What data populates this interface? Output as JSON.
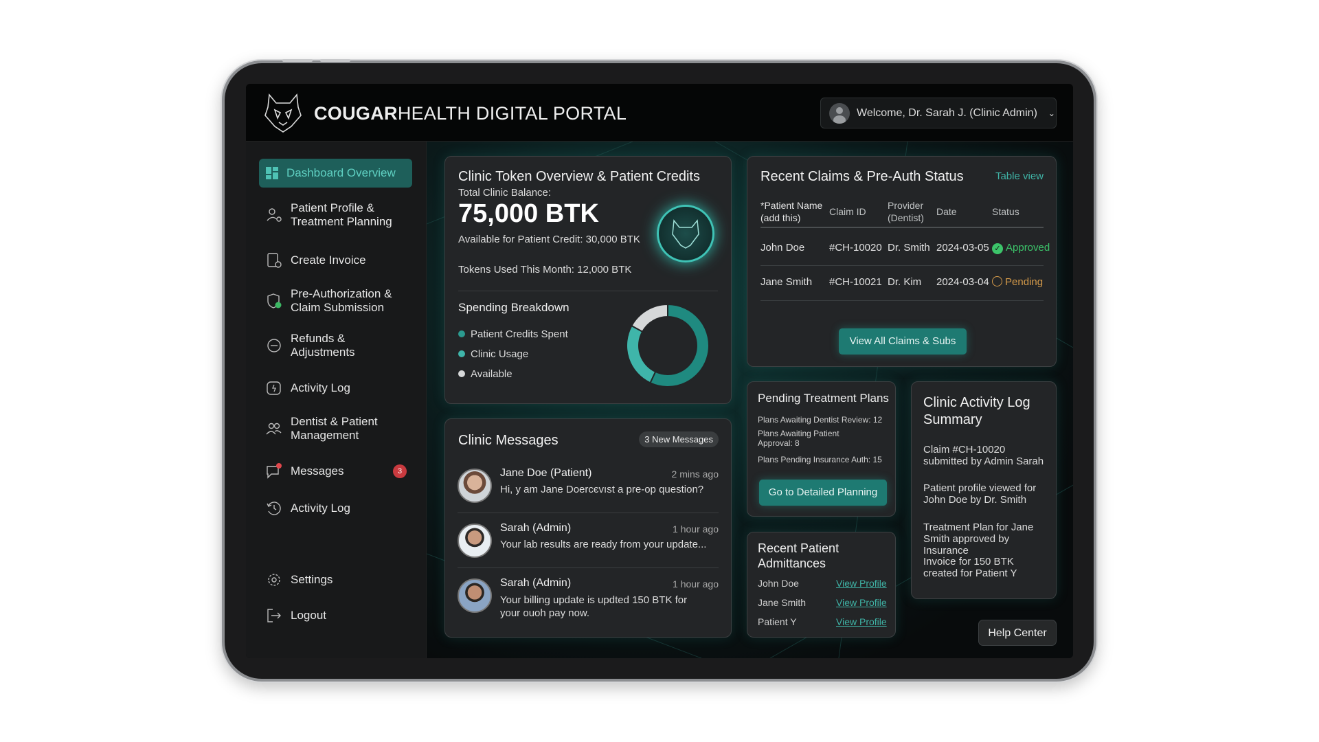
{
  "header": {
    "brand_bold": "COUGAR",
    "brand_rest": "HEALTH DIGITAL PORTAL",
    "welcome": "Welcome, Dr. Sarah J. (Clinic Admin)"
  },
  "sidebar": {
    "items": [
      {
        "label": "Dashboard Overview",
        "icon": "dashboard-icon",
        "active": true
      },
      {
        "label": "Patient Profile & Treatment Planning",
        "icon": "user-gear-icon"
      },
      {
        "label": "Create Invoice",
        "icon": "invoice-icon"
      },
      {
        "label": "Pre-Authorization & Claim Submission",
        "icon": "shield-check-icon"
      },
      {
        "label": "Refunds & Adjustments",
        "icon": "refund-icon"
      },
      {
        "label": "Activity Log",
        "icon": "activity-icon"
      },
      {
        "label": "Dentist & Patient Management",
        "icon": "users-icon"
      },
      {
        "label": "Messages",
        "icon": "message-icon",
        "badge": "3"
      },
      {
        "label": "Activity Log",
        "icon": "history-icon"
      },
      {
        "label": "Settings",
        "icon": "gear-icon"
      },
      {
        "label": "Logout",
        "icon": "logout-icon"
      }
    ]
  },
  "token": {
    "title": "Clinic Token Overview & Patient Credits",
    "balance_label": "Total Clinic Balance:",
    "balance": "75,000 BTK",
    "available": "Available for Patient Credit: 30,000 BTK",
    "used": "Tokens Used This Month: 12,000 BTK",
    "breakdown_title": "Spending Breakdown"
  },
  "chart_data": {
    "type": "pie",
    "title": "Spending Breakdown",
    "series": [
      {
        "name": "Patient Credits Spent",
        "value": 57,
        "color": "#1f8a80"
      },
      {
        "name": "Clinic Usage",
        "value": 26,
        "color": "#3fb5aa"
      },
      {
        "name": "Available",
        "value": 17,
        "color": "#d6d8d9"
      }
    ]
  },
  "messages": {
    "title": "Clinic Messages",
    "badge": "3 New Messages",
    "items": [
      {
        "from": "Jane Doe (Patient)",
        "time": "2 mins ago",
        "text": "Hi, y am Jane Doercєvıst a pre-op question?"
      },
      {
        "from": "Sarah (Admin)",
        "time": "1 hour ago",
        "text": "Your lab results are ready from your update..."
      },
      {
        "from": "Sarah (Admin)",
        "time": "1 hour ago",
        "text": "Your billing update is updted 150 BTK for your ouoh pay now."
      }
    ]
  },
  "claims": {
    "title": "Recent Claims & Pre-Auth Status",
    "view_toggle": "Table view",
    "columns": [
      "*Patient Name (add this)",
      "Claim ID",
      "Provider (Dentist)",
      "Date",
      "Status"
    ],
    "rows": [
      [
        "John Doe",
        "#CH-10020",
        "Dr. Smith",
        "2024-03-05",
        "Approved"
      ],
      [
        "Jane Smith",
        "#CH-10021",
        "Dr. Kim",
        "2024-03-04",
        "Pending"
      ]
    ],
    "status_colors": {
      "Approved": "#3cc46a",
      "Pending": "#d49a4a"
    },
    "button": "View All Claims & Subs"
  },
  "pending": {
    "title": "Pending Treatment Plans",
    "lines": [
      "Plans Awaiting Dentist Review: 12",
      "Plans Awaiting Patient Approval: 8",
      "Plans Pending Insurance Auth: 15"
    ],
    "button": "Go to Detailed Planning"
  },
  "admit": {
    "title": "Recent Patient Admittances",
    "rows": [
      {
        "name": "John Doe",
        "link": "View Profile"
      },
      {
        "name": "Jane Smith",
        "link": "View Profile"
      },
      {
        "name": "Patient Y",
        "link": "View Profile"
      }
    ]
  },
  "activity": {
    "title": "Clinic Activity Log Summary",
    "entries": [
      "Claim #CH-10020 submitted by Admin Sarah",
      "Patient profile viewed for John Doe by Dr. Smith",
      "Treatment Plan for Jane Smith approved by Insurance",
      "Invoice for 150 BTK created for Patient Y"
    ]
  },
  "help": "Help Center"
}
